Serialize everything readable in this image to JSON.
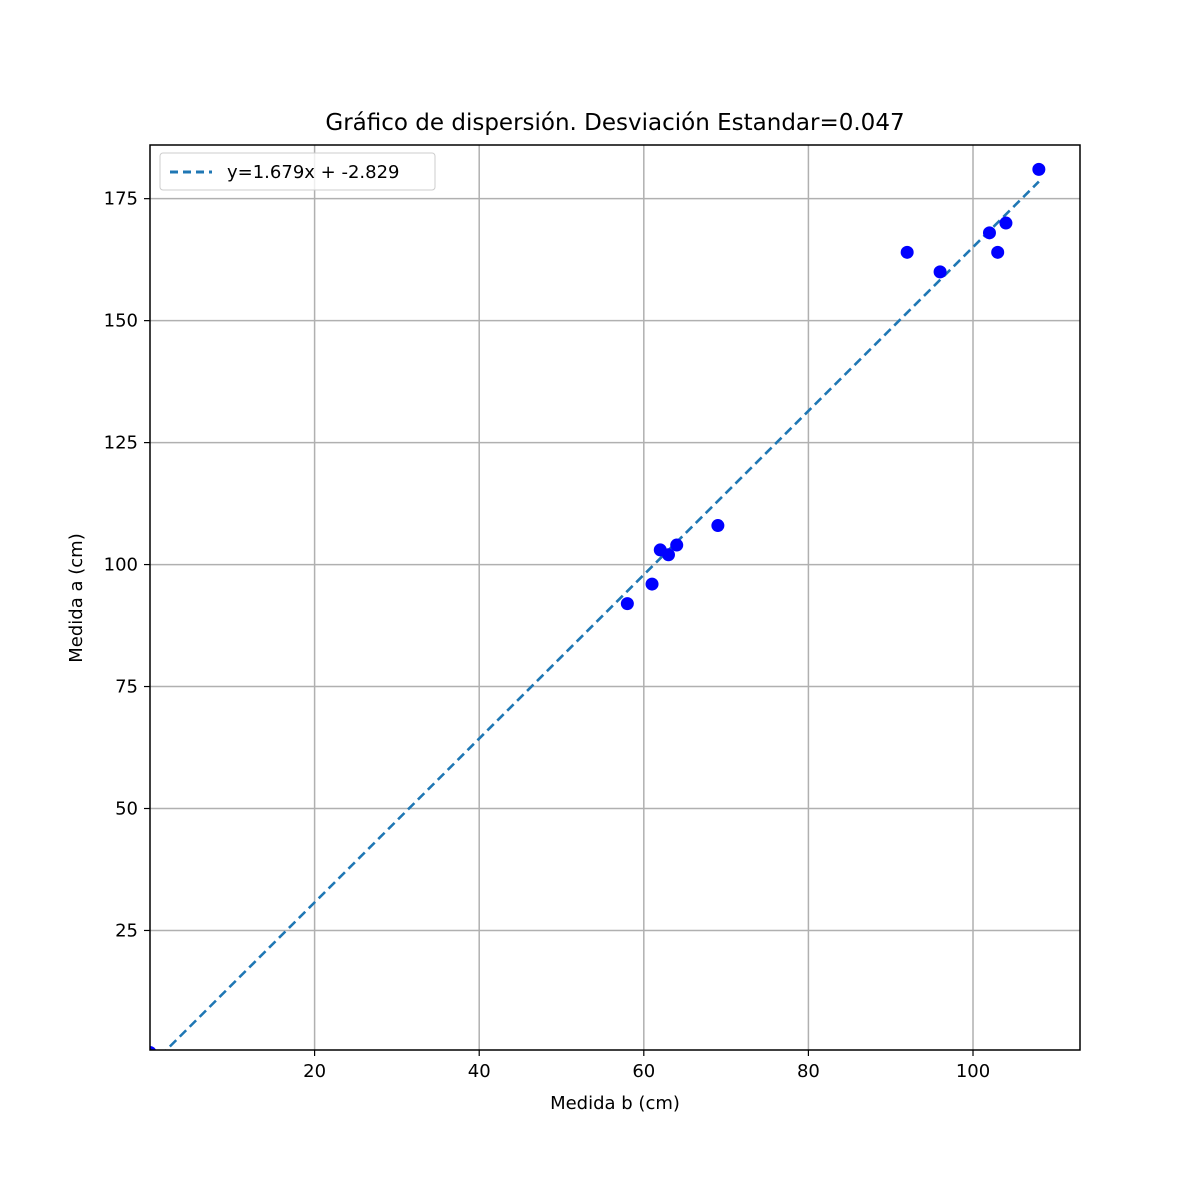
{
  "chart_data": {
    "type": "scatter",
    "title": "Gráfico de dispersión. Desviación Estandar=0.047",
    "xlabel": "Medida b (cm)",
    "ylabel": "Medida a (cm)",
    "xlim": [
      0,
      113
    ],
    "ylim": [
      0.5,
      186
    ],
    "xticks": [
      20,
      40,
      60,
      80,
      100
    ],
    "yticks": [
      25,
      50,
      75,
      100,
      125,
      150,
      175
    ],
    "grid": true,
    "legend_position": "top-left",
    "points": {
      "color": "#0000ff",
      "x": [
        0,
        58,
        61,
        62,
        63,
        64,
        69,
        92,
        96,
        102,
        103,
        104,
        108
      ],
      "y": [
        0,
        92,
        96,
        103,
        102,
        104,
        108,
        164,
        160,
        168,
        164,
        170,
        181
      ]
    },
    "fit_line": {
      "label": "y=1.679x + -2.829",
      "slope": 1.679,
      "intercept": -2.829,
      "x_range": [
        0,
        108
      ],
      "color": "#1f77b4",
      "style": "dashed"
    }
  }
}
